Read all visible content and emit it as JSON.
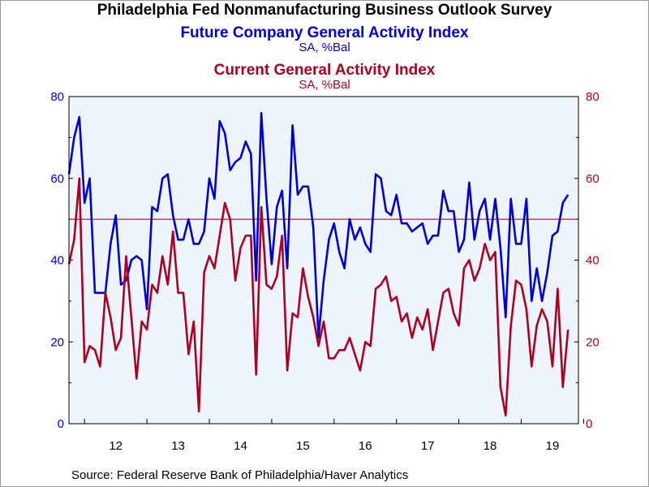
{
  "title": "Philadelphia Fed Nonmanufacturing Business Outlook Survey",
  "source": "Source:  Federal Reserve Bank of Philadelphia/Haver Analytics",
  "colors": {
    "future": "#0000cc",
    "current": "#aa0022",
    "plot_bg": "#eef4fc",
    "refline": "#7a0018"
  },
  "chart_data": {
    "type": "line",
    "x_start": "2011-10",
    "x_end": "2019-12",
    "x_tick_labels": [
      "12",
      "13",
      "14",
      "15",
      "16",
      "17",
      "18",
      "19"
    ],
    "x_tick_years": [
      2012,
      2013,
      2014,
      2015,
      2016,
      2017,
      2018,
      2019
    ],
    "ylim_left": [
      0,
      80
    ],
    "ylim_right": [
      0,
      80
    ],
    "yticks": [
      0,
      20,
      40,
      60,
      80
    ],
    "reference_line": 50,
    "grid": false,
    "series": [
      {
        "name": "Future Company General Activity Index",
        "units": "SA, %Bal",
        "axis": "left",
        "values": [
          61,
          70,
          75,
          54,
          60,
          32,
          32,
          32,
          44,
          51,
          34,
          35,
          40,
          41,
          40,
          28,
          53,
          52,
          60,
          61,
          51,
          45,
          45,
          50,
          44,
          44,
          47,
          60,
          55,
          74,
          71,
          62,
          64,
          65,
          69,
          66,
          35,
          76,
          55,
          39,
          53,
          57,
          38,
          73,
          56,
          58,
          58,
          48,
          21,
          35,
          45,
          49,
          42,
          38,
          50,
          45,
          48,
          44,
          42,
          61,
          60,
          52,
          51,
          56,
          49,
          49,
          47,
          48,
          49,
          44,
          46,
          46,
          57,
          52,
          52,
          42,
          45,
          59,
          45,
          52,
          55,
          45,
          55,
          43,
          26,
          55,
          44,
          44,
          55,
          30,
          38,
          30,
          37,
          46,
          47,
          54,
          56
        ]
      },
      {
        "name": "Current General Activity Index",
        "units": "SA, %Bal",
        "axis": "right",
        "values": [
          39,
          45,
          60,
          15,
          19,
          18,
          14,
          32,
          26,
          18,
          21,
          41,
          26,
          11,
          25,
          23,
          34,
          32,
          41,
          34,
          47,
          32,
          32,
          17,
          25,
          3,
          37,
          41,
          38,
          46,
          54,
          50,
          35,
          43,
          46,
          46,
          12,
          53,
          34,
          33,
          36,
          46,
          13,
          27,
          26,
          38,
          31,
          26,
          19,
          25,
          16,
          16,
          18,
          18,
          21,
          17,
          13,
          20,
          19,
          33,
          34,
          36,
          30,
          31,
          25,
          27,
          21,
          26,
          23,
          28,
          18,
          25,
          32,
          33,
          27,
          24,
          38,
          40,
          35,
          38,
          44,
          40,
          42,
          9,
          2,
          24,
          35,
          34,
          28,
          14,
          24,
          28,
          25,
          14,
          33,
          9,
          23
        ]
      }
    ]
  }
}
